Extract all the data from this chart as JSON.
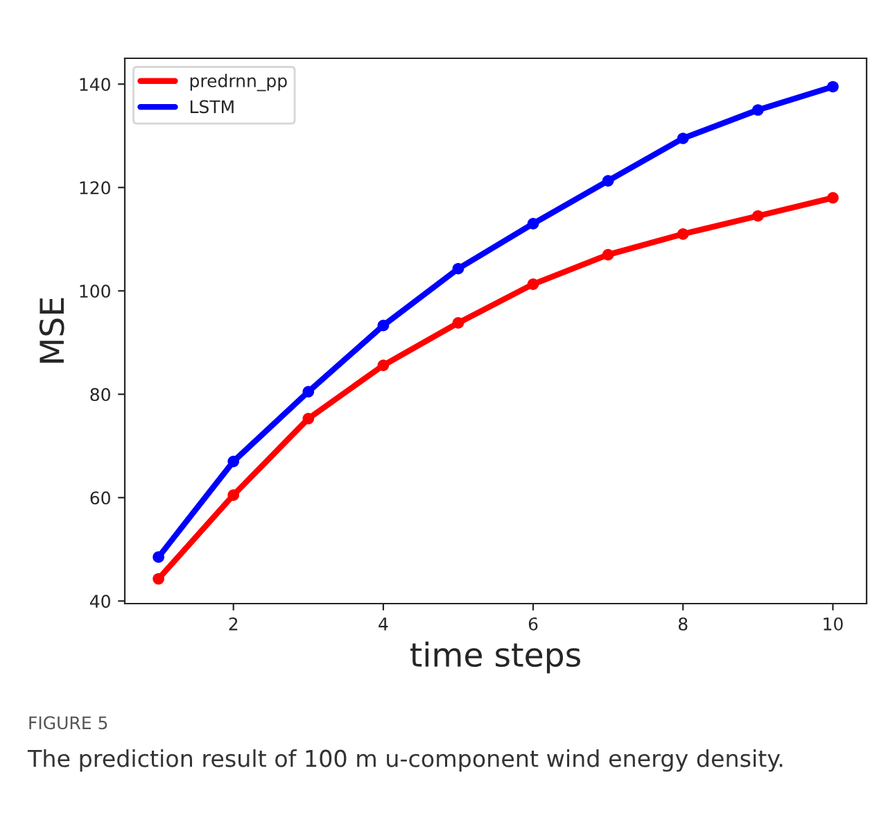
{
  "chart_data": {
    "type": "line",
    "xlabel": "time steps",
    "ylabel": "MSE",
    "x": [
      1,
      2,
      3,
      4,
      5,
      6,
      7,
      8,
      9,
      10
    ],
    "series": [
      {
        "name": "predrnn_pp",
        "color": "#ff0000",
        "values": [
          44.3,
          60.5,
          75.3,
          85.6,
          93.8,
          101.3,
          107,
          111,
          114.5,
          118
        ]
      },
      {
        "name": "LSTM",
        "color": "#0000ff",
        "values": [
          48.5,
          67,
          80.5,
          93.3,
          104.3,
          113,
          121.3,
          129.5,
          135,
          139.5
        ]
      }
    ],
    "xlim": [
      0.55,
      10.45
    ],
    "xticks": [
      2,
      4,
      6,
      8,
      10
    ],
    "ylim": [
      39.5,
      145
    ],
    "yticks": [
      40,
      60,
      80,
      100,
      120,
      140
    ],
    "grid": false,
    "legend": "top left",
    "marker": "circle",
    "line_style": "solid",
    "annotations": [
      "FIGURE 5",
      "The prediction result of 100 m u-component wind energy density."
    ]
  }
}
